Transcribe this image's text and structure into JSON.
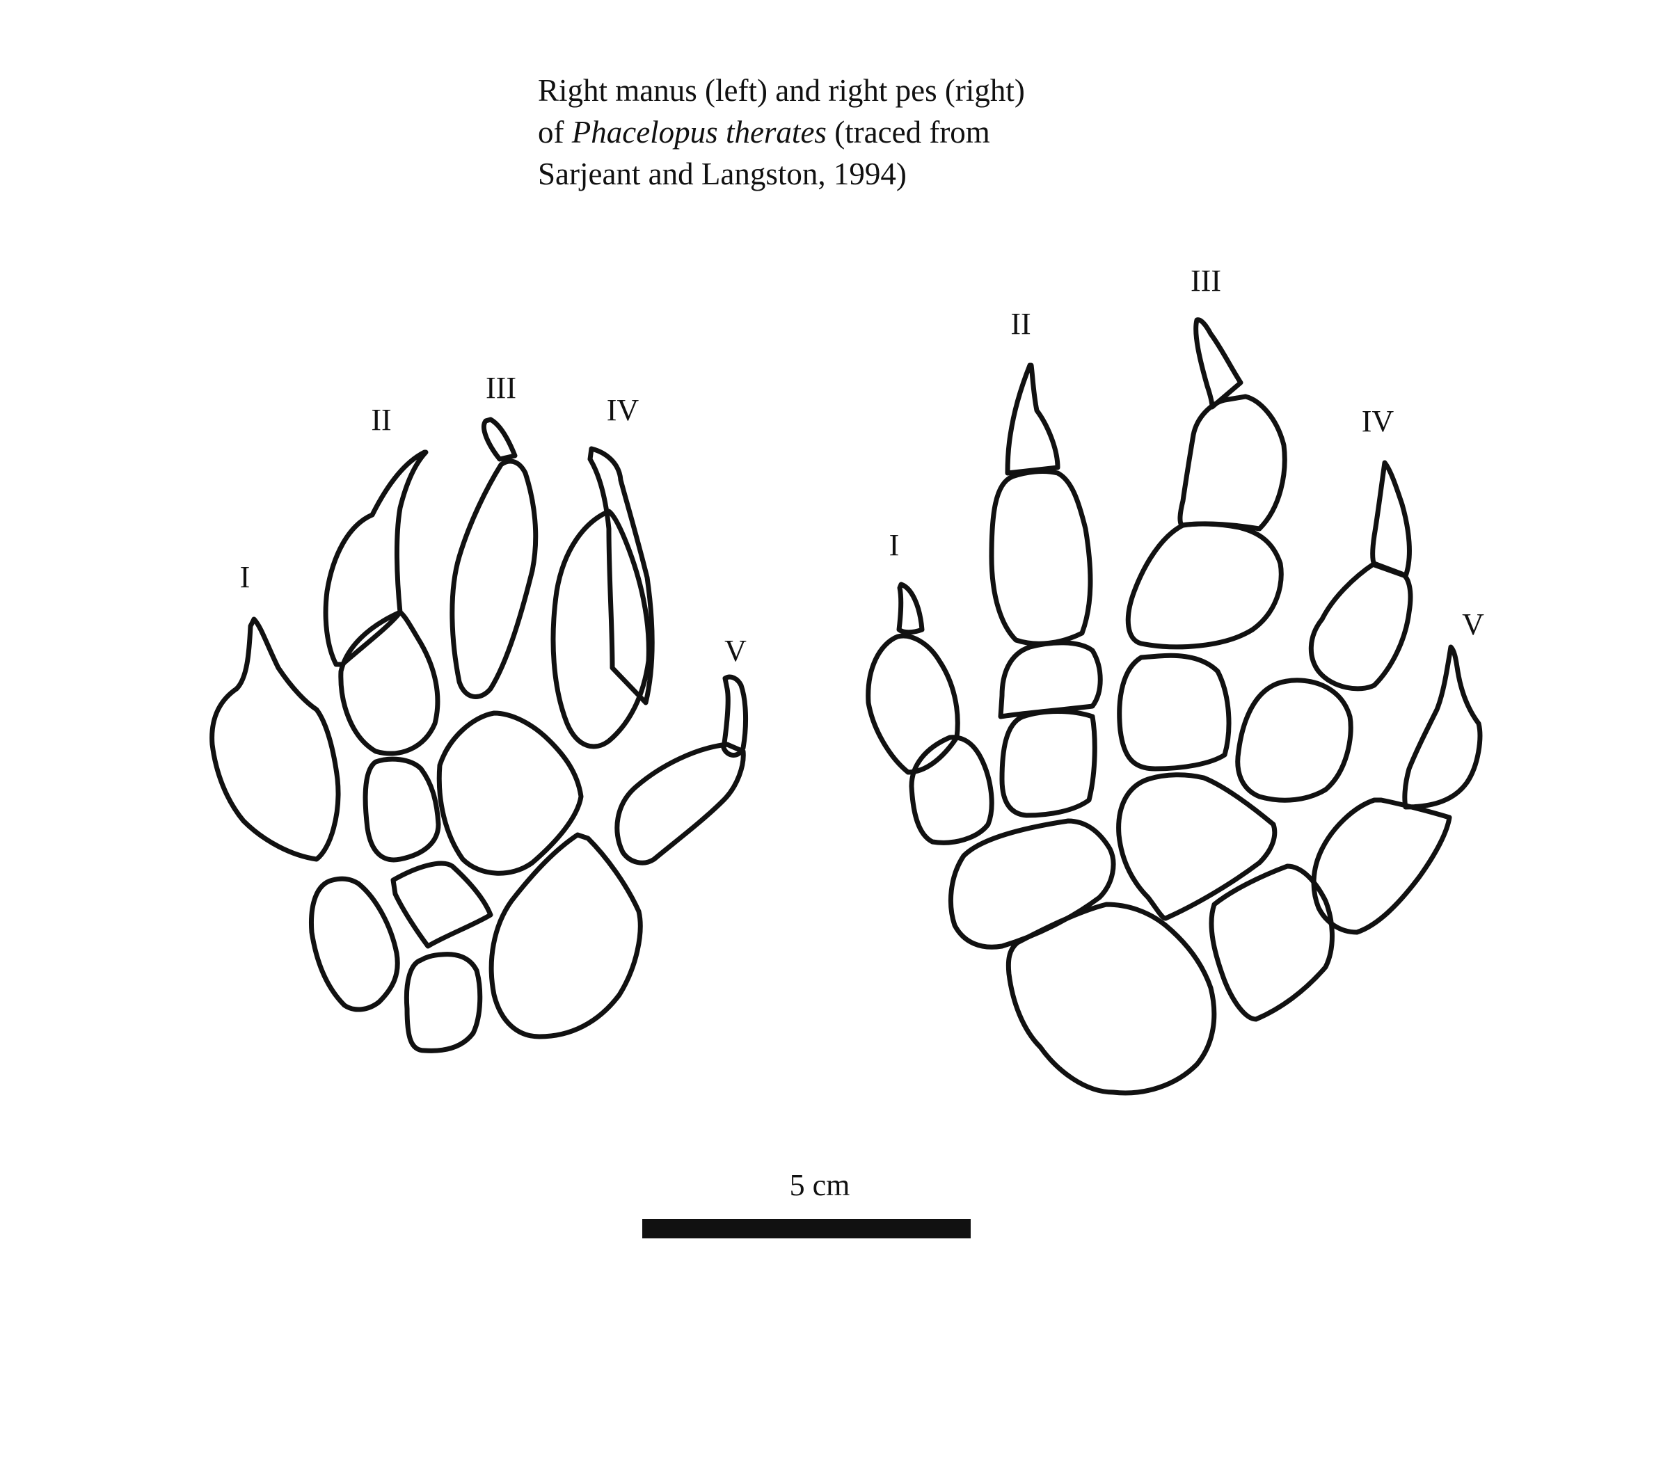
{
  "caption": {
    "line1": "Right manus (left) and right pes (right)",
    "line2_pre": "of ",
    "line2_italic": "Phacelopus therates",
    "line2_post": " (traced from",
    "line3": "Sarjeant and Langston, 1994)"
  },
  "manus": {
    "digits": [
      "I",
      "II",
      "III",
      "IV",
      "V"
    ]
  },
  "pes": {
    "digits": [
      "I",
      "II",
      "III",
      "IV",
      "V"
    ]
  },
  "scale_bar": {
    "label": "5 cm"
  }
}
